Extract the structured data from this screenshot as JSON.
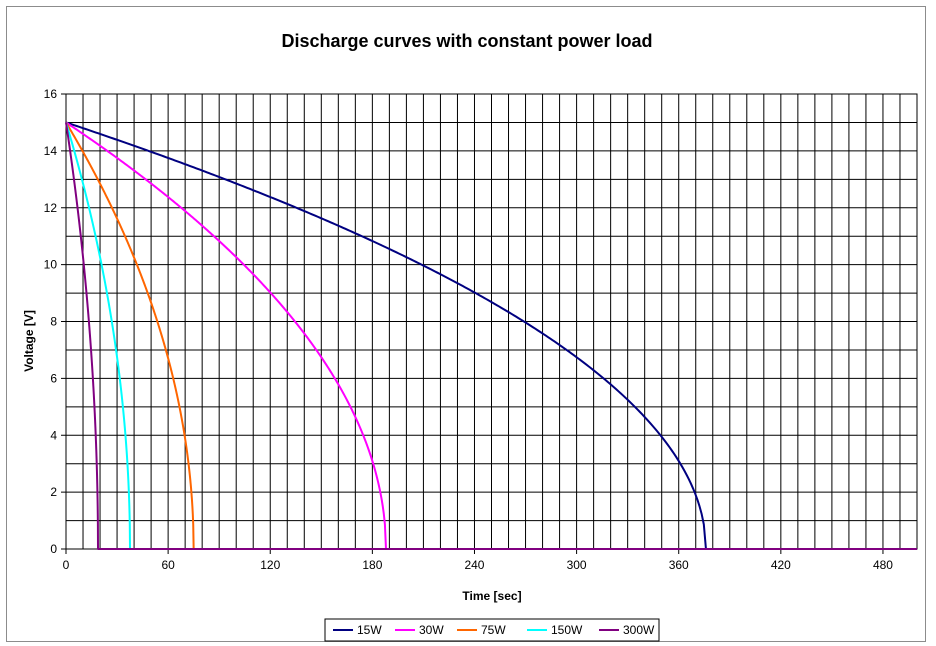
{
  "chart_data": {
    "type": "line",
    "title": "Discharge curves with constant power load",
    "xlabel": "Time [sec]",
    "ylabel": "Voltage [V]",
    "xlim": [
      0,
      500
    ],
    "ylim": [
      0,
      16
    ],
    "x_ticks": [
      0,
      60,
      120,
      180,
      240,
      300,
      360,
      420,
      480
    ],
    "y_ticks": [
      0,
      2,
      4,
      6,
      8,
      10,
      12,
      14,
      16
    ],
    "x_grid_step": 10,
    "y_grid_step": 1,
    "grid": true,
    "legend_position": "bottom",
    "series": [
      {
        "name": "15W",
        "color": "#000080",
        "initial_voltage": 15,
        "discharge_end_time": 376
      },
      {
        "name": "30W",
        "color": "#ff00ff",
        "initial_voltage": 15,
        "discharge_end_time": 188
      },
      {
        "name": "75W",
        "color": "#ff6600",
        "initial_voltage": 15,
        "discharge_end_time": 75
      },
      {
        "name": "150W",
        "color": "#00ffff",
        "initial_voltage": 15,
        "discharge_end_time": 37.6
      },
      {
        "name": "300W",
        "color": "#800080",
        "initial_voltage": 15,
        "discharge_end_time": 18.8
      }
    ]
  }
}
